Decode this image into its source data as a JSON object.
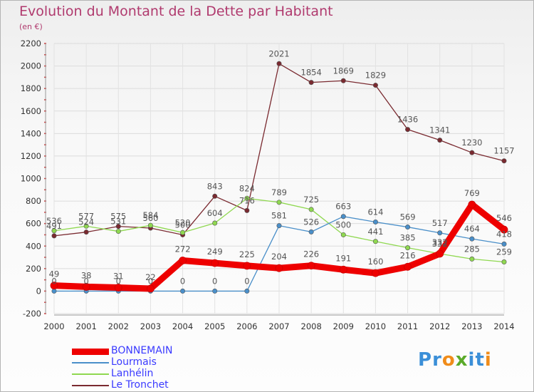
{
  "title": "Evolution du Montant de la Dette par Habitant",
  "unit_label": "(en €)",
  "brand": {
    "text": "Proxiti",
    "letters": [
      {
        "ch": "P",
        "color": "#3b8fd8"
      },
      {
        "ch": "r",
        "color": "#3b8fd8"
      },
      {
        "ch": "o",
        "color": "#f08c1a"
      },
      {
        "ch": "x",
        "color": "#5aaa2a"
      },
      {
        "ch": "i",
        "color": "#3b8fd8"
      },
      {
        "ch": "t",
        "color": "#3b8fd8"
      },
      {
        "ch": "i",
        "color": "#f08c1a"
      }
    ]
  },
  "chart_data": {
    "type": "line",
    "title": "Evolution du Montant de la Dette par Habitant",
    "ylabel": "(en €)",
    "xlabel": "",
    "x": [
      "2000",
      "2001",
      "2002",
      "2003",
      "2004",
      "2005",
      "2006",
      "2007",
      "2008",
      "2009",
      "2010",
      "2011",
      "2012",
      "2013",
      "2014"
    ],
    "ylim": [
      -200,
      2200
    ],
    "yticks": [
      -200,
      0,
      200,
      400,
      600,
      800,
      1000,
      1200,
      1400,
      1600,
      1800,
      2000,
      2200
    ],
    "grid": true,
    "legend": "bottom-left",
    "series": [
      {
        "name": "BONNEMAIN",
        "color": "#ee0000",
        "values": [
          49,
          38,
          31,
          22,
          272,
          249,
          225,
          204,
          226,
          191,
          160,
          216,
          332,
          769,
          546
        ]
      },
      {
        "name": "Lourmais",
        "color": "#4a8fc9",
        "values": [
          0,
          0,
          0,
          0,
          0,
          0,
          0,
          581,
          526,
          663,
          614,
          569,
          517,
          464,
          418
        ]
      },
      {
        "name": "Lanhélin",
        "color": "#8fd850",
        "values": [
          536,
          577,
          531,
          584,
          520,
          604,
          824,
          789,
          725,
          500,
          441,
          385,
          332,
          285,
          259
        ]
      },
      {
        "name": "Le Tronchet",
        "color": "#7a2a30",
        "values": [
          491,
          524,
          575,
          560,
          500,
          843,
          716,
          2021,
          1854,
          1869,
          1829,
          1436,
          1341,
          1230,
          1157
        ]
      }
    ]
  }
}
